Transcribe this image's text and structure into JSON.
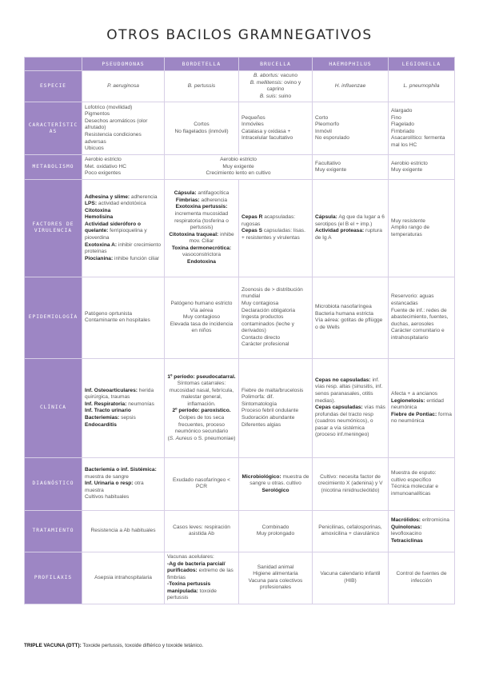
{
  "title": "OTROS BACILOS GRAMNEGATIVOS",
  "columns": [
    "PSEUDOMONAS",
    "BORDETELLA",
    "BRUCELLA",
    "HAEMOPHILUS",
    "LEGIONELLA"
  ],
  "rows": [
    {
      "label": "ESPECIE",
      "cells": [
        {
          "lines": [
            {
              "i": "P. aeruginosa"
            }
          ]
        },
        {
          "lines": [
            {
              "i": "B. pertussis"
            }
          ]
        },
        {
          "lines": [
            {
              "i": "B. abortus:",
              "t": " vacuno"
            },
            {
              "i": "B. mellitensis:",
              "t": " ovino y caprino"
            },
            {
              "i": "B. suis:",
              "t": " suino"
            }
          ]
        },
        {
          "lines": [
            {
              "i": "H. influenzae"
            }
          ]
        },
        {
          "lines": [
            {
              "i": "L. pneumophila"
            }
          ]
        }
      ]
    },
    {
      "label": "CARACTERÍSTICAS",
      "cells": [
        {
          "lines": [
            {
              "t": "Lofotrico (movilidad)"
            },
            {
              "t": "Pigmentos"
            },
            {
              "t": "Desechos aromáticos (olor afrutado)"
            },
            {
              "t": "Resistencia condiciones adversas"
            },
            {
              "t": "Ubicuos"
            }
          ]
        },
        {
          "lines": [
            {
              "t": "Cortos"
            },
            {
              "t": "No flagelados (inmóvil)"
            }
          ]
        },
        {
          "lines": [
            {
              "t": "Pequeños"
            },
            {
              "t": "Inmóviles"
            },
            {
              "t": "Catalasa y oxidasa +"
            },
            {
              "t": "Intracelular facultativo"
            }
          ]
        },
        {
          "lines": [
            {
              "t": "Corto"
            },
            {
              "t": "Pleomorfo"
            },
            {
              "t": "Inmóvil"
            },
            {
              "t": "No esporulado"
            }
          ]
        },
        {
          "lines": [
            {
              "t": "Alargado"
            },
            {
              "t": "Fino"
            },
            {
              "t": "Flagelado"
            },
            {
              "t": "Fimbriado"
            },
            {
              "t": "Asacarolítico: fermenta mal los HC"
            }
          ]
        }
      ]
    },
    {
      "label": "METABOLISMO",
      "pseudo": {
        "lines": [
          {
            "t": "Aerobio estricto"
          },
          {
            "t": "Met. oxidativo HC"
          },
          {
            "t": "Poco exigentes"
          }
        ]
      },
      "merged": {
        "lines": [
          {
            "t": "Aerobio estricto"
          },
          {
            "t": "Muy exigente"
          },
          {
            "t": "Crecimiento lento en cultivo"
          }
        ]
      },
      "haemo": {
        "lines": [
          {
            "t": "Facultativo"
          },
          {
            "t": "Muy exigente"
          }
        ]
      },
      "legio": {
        "lines": [
          {
            "t": "Aerobio estricto"
          },
          {
            "t": "Muy exigente"
          }
        ]
      }
    },
    {
      "label": "FACTORES DE VIRULENCIA",
      "cells": [
        {
          "lines": [
            {
              "b": "Adhesina y slime:",
              "t": " adherencia"
            },
            {
              "b": "LPS:",
              "t": " actividad endotóxica"
            },
            {
              "b": "Citotoxina"
            },
            {
              "b": "Hemolisina"
            },
            {
              "b": "Actividad sideróforo o quelante:",
              "t": " ferripioquelina y pioverdina"
            },
            {
              "b": "Exotoxina A:",
              "t": " inhibir crecimiento proteínas"
            },
            {
              "b": "Piocianina:",
              "t": " inhibe función ciliar"
            }
          ]
        },
        {
          "lines": [
            {
              "b": "Cápsula:",
              "t": " antifagocítica"
            },
            {
              "b": "Fimbrias:",
              "t": " adherencia"
            },
            {
              "b": "Exotoxina pertussis:",
              "t": " incrementa mucosidad respiratoria (tosferina o pertussis)"
            },
            {
              "b": "Citotoxina traqueal:",
              "t": " inhibe mov. Ciliar"
            },
            {
              "b": "Toxina dermonecrótica:",
              "t": " vasoconstrictora"
            },
            {
              "b": "Endotoxina"
            }
          ]
        },
        {
          "lines": [
            {
              "b": "Cepas R",
              "t": " acapsuladas: rugosas"
            },
            {
              "b": "Cepas S",
              "t": " capsuladas: lisas. + resistentes y virulentas"
            }
          ]
        },
        {
          "lines": [
            {
              "b": "Cápsula:",
              "t": " Ag que da lugar a 6 serotipos (el B el + imp.)"
            },
            {
              "b": "Actividad proteasa:",
              "t": " ruptura de Ig A"
            }
          ]
        },
        {
          "lines": [
            {
              "t": "Muy resistente"
            },
            {
              "t": "Amplio rango de temperaturas"
            }
          ]
        }
      ]
    },
    {
      "label": "EPIDEMIOLOGÍA",
      "cells": [
        {
          "lines": [
            {
              "t": "Patógeno oprtunista"
            },
            {
              "t": "Contaminante en hospitales"
            }
          ]
        },
        {
          "lines": [
            {
              "t": "Patógeno humano estricto"
            },
            {
              "t": "Vía aérea"
            },
            {
              "t": "Muy contagioso"
            },
            {
              "t": "Elevada tasa de incidencia en niños"
            }
          ]
        },
        {
          "lines": [
            {
              "t": "Zoonosis de > distribución mundial"
            },
            {
              "t": "Muy contagiosa"
            },
            {
              "t": "Declaración obligatoria"
            },
            {
              "t": "Ingesta productos contaminados (leche y derivados)"
            },
            {
              "t": "Contacto directo"
            },
            {
              "t": "Carácter profesional"
            }
          ]
        },
        {
          "lines": [
            {
              "t": "Microbiota nasofaríngea"
            },
            {
              "t": "Bacteria humana estricta"
            },
            {
              "t": "Vía aérea: gotitas de pflügge o de Wells"
            }
          ]
        },
        {
          "lines": [
            {
              "t": "Reservorio: aguas estancadas"
            },
            {
              "t": "Fuente de inf.: redes de abastecimiento, fuentes, duchas, aerosoles"
            },
            {
              "t": "Carácter comunitario e intrahospitalario"
            }
          ]
        }
      ]
    },
    {
      "label": "CLÍNICA",
      "cells": [
        {
          "lines": [
            {
              "b": "Inf. Osteoarticulares:",
              "t": " herida quirúrgica, traumas"
            },
            {
              "b": "Inf. Respiratoria:",
              "t": " neumonías"
            },
            {
              "b": "Inf. Tracto urinario"
            },
            {
              "b": "Bacteriemias:",
              "t": " sepsis"
            },
            {
              "b": "Endocarditis"
            }
          ]
        },
        {
          "lines": [
            {
              "b": "1º período: pseudocatarral."
            },
            {
              "t": "Síntomas catarrales: mucosidad nasal, febrícula, malestar general, inflamación."
            },
            {
              "b": "2º período: paroxístico."
            },
            {
              "t": "Golpes de tos seca frecuentes, proceso neumónico secundario"
            },
            {
              "t": "(",
              "i": "S. Aureus",
              "t2": " o S. pneumoniae)"
            }
          ]
        },
        {
          "lines": [
            {
              "t": "Fiebre de malta/brucelosis"
            },
            {
              "t": "Polimorfa: dif. Sintomatología"
            },
            {
              "t": "Proceso febril ondulante"
            },
            {
              "t": "Sudoración abundante"
            },
            {
              "t": "Diferentes algias"
            }
          ]
        },
        {
          "lines": [
            {
              "b": "Cepas no capsuladas:",
              "t": " inf. vías resp. altas (sinusitis, inf. senos paranasales, otitis medias)."
            },
            {
              "b": "Cepas capsuladas:",
              "t": " vías más profundas del tracto resp (cuadros neumónicos), o pasar a vía sistémica (proceso inf.meningeo)"
            }
          ]
        },
        {
          "lines": [
            {
              "t": "Afecta + a ancianos"
            },
            {
              "b": "Legionelosis:",
              "t": " entidad neumónica"
            },
            {
              "b": "Fiebre de Pontiac:",
              "t": " forma no neumónica"
            }
          ]
        }
      ]
    },
    {
      "label": "DIAGNÓSTICO",
      "cells": [
        {
          "lines": [
            {
              "b": "Bacteriemia o inf. Sistémica:",
              "t": " muestra de sangre"
            },
            {
              "b": "Inf. Urinaria o resp:",
              "t": " otra muestra"
            },
            {
              "t": "Cultivos habituales"
            }
          ]
        },
        {
          "lines": [
            {
              "t": "Exudado nasofaríngeo < PCR"
            }
          ]
        },
        {
          "lines": [
            {
              "b": "Microbiológico:",
              "t": " muestra de sangre u otras. cultivo"
            },
            {
              "b": "Serológico"
            }
          ]
        },
        {
          "lines": [
            {
              "t": "Cultivo: necesita factor de crecimiento X (adenina) y V (nicotina ninidnucleótido)"
            }
          ]
        },
        {
          "lines": [
            {
              "t": "Muestra de esputo: cultivo específico"
            },
            {
              "t": "Técnica molecular e inmunoanalíticas"
            }
          ]
        }
      ]
    },
    {
      "label": "TRATAMIENTO",
      "cells": [
        {
          "lines": [
            {
              "t": "Resistencia a Ab habituales"
            }
          ]
        },
        {
          "lines": [
            {
              "t": "Casos leves: respiración asistida Ab"
            }
          ]
        },
        {
          "lines": [
            {
              "t": "Combinado"
            },
            {
              "t": "Muy prolongado"
            }
          ]
        },
        {
          "lines": [
            {
              "t": "Penicilinas, cefalosporinas, amoxicilina + clavulánico"
            }
          ]
        },
        {
          "lines": [
            {
              "b": "Macrólidos:",
              "t": " eritromicina"
            },
            {
              "b": "Quinolonas:",
              "t": " levofloxacino"
            },
            {
              "b": "Tetraciclinas"
            }
          ]
        }
      ]
    },
    {
      "label": "PROFILAXIS",
      "cells": [
        {
          "lines": [
            {
              "t": "Asepsia intrahospitalaria"
            }
          ]
        },
        {
          "lines": [
            {
              "t": "Vacunas acelulares:"
            },
            {
              "b": "-Ag de bacteria parcial/ purificados:",
              "t": " extremo de las fimbrias"
            },
            {
              "b": "-Toxina pertussis manipulada:",
              "t": " toxoide pertussis"
            }
          ]
        },
        {
          "lines": [
            {
              "t": "Sanidad animal"
            },
            {
              "t": "Higiene alimentaria"
            },
            {
              "t": "Vacuna para colectivos profesionales"
            }
          ]
        },
        {
          "lines": [
            {
              "t": "Vacuna calendario infantil (HIB)"
            }
          ]
        },
        {
          "lines": [
            {
              "t": "Control de fuentes de infección"
            }
          ]
        }
      ]
    }
  ],
  "footnote": {
    "label": "TRIPLE VACUNA (DTT):",
    "text": " Toxoide pertussis, toxoide diftérico y toxoide tetánico."
  },
  "colors": {
    "header_bg": "#9d86c4",
    "border": "#d7cfe6",
    "text": "#555555"
  }
}
